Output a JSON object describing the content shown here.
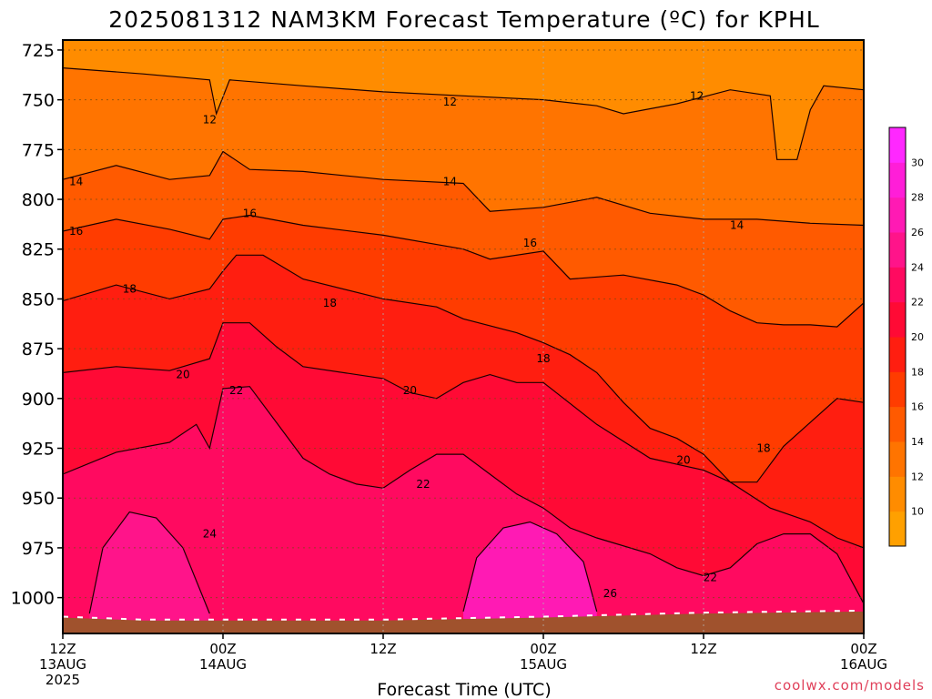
{
  "chart_data": {
    "type": "heatmap",
    "title": "2025081312 NAM3KM Forecast Temperature (ºC) for KPHL",
    "xlabel": "Forecast Time (UTC)",
    "ylabel": "",
    "y_scale": "inverted-pressure",
    "ylim": [
      1018,
      720
    ],
    "xlim_hours": [
      0,
      60
    ],
    "y_ticks": [
      "725",
      "750",
      "775",
      "800",
      "825",
      "850",
      "875",
      "900",
      "925",
      "950",
      "975",
      "1000"
    ],
    "x_ticks": [
      {
        "hour": 0,
        "label": "12Z",
        "date": "13AUG",
        "year": "2025"
      },
      {
        "hour": 12,
        "label": "00Z",
        "date": "14AUG",
        "year": ""
      },
      {
        "hour": 24,
        "label": "12Z",
        "date": "",
        "year": ""
      },
      {
        "hour": 36,
        "label": "00Z",
        "date": "15AUG",
        "year": ""
      },
      {
        "hour": 48,
        "label": "12Z",
        "date": "",
        "year": ""
      },
      {
        "hour": 60,
        "label": "00Z",
        "date": "16AUG",
        "year": ""
      }
    ],
    "grid": true,
    "color_scale": {
      "min": 8,
      "max": 32,
      "step": 2,
      "ticks": [
        "10",
        "12",
        "14",
        "16",
        "18",
        "20",
        "22",
        "24",
        "26",
        "28",
        "30"
      ],
      "colors": [
        "#ffa000",
        "#ff8c00",
        "#ff7400",
        "#ff5a00",
        "#ff3c00",
        "#ff1e10",
        "#ff0a35",
        "#ff0a60",
        "#ff148a",
        "#ff1ab4",
        "#ff1ed8",
        "#ff28ff"
      ]
    },
    "surface_pressure_hpa": [
      {
        "hour": 0,
        "p": 1010
      },
      {
        "hour": 6,
        "p": 1011.5
      },
      {
        "hour": 12,
        "p": 1011.5
      },
      {
        "hour": 24,
        "p": 1011.5
      },
      {
        "hour": 36,
        "p": 1010
      },
      {
        "hour": 48,
        "p": 1008
      },
      {
        "hour": 60,
        "p": 1007
      }
    ],
    "contours": [
      {
        "level": 12,
        "points": [
          [
            0,
            734
          ],
          [
            6,
            737
          ],
          [
            11,
            740
          ],
          [
            11.5,
            757
          ],
          [
            12.5,
            740
          ],
          [
            18,
            743
          ],
          [
            24,
            746
          ],
          [
            30,
            748
          ],
          [
            36,
            750
          ],
          [
            40,
            753
          ],
          [
            42,
            757
          ],
          [
            46,
            752
          ],
          [
            50,
            745
          ],
          [
            53,
            748
          ],
          [
            53.5,
            780
          ],
          [
            55,
            780
          ],
          [
            56,
            755
          ],
          [
            57,
            743
          ],
          [
            60,
            745
          ]
        ]
      },
      {
        "level": 14,
        "points": [
          [
            0,
            790
          ],
          [
            4,
            783
          ],
          [
            8,
            790
          ],
          [
            11,
            788
          ],
          [
            12,
            776
          ],
          [
            14,
            785
          ],
          [
            18,
            786
          ],
          [
            24,
            790
          ],
          [
            30,
            792
          ],
          [
            32,
            806
          ],
          [
            36,
            804
          ],
          [
            40,
            799
          ],
          [
            44,
            807
          ],
          [
            48,
            810
          ],
          [
            52,
            810
          ],
          [
            56,
            812
          ],
          [
            60,
            813
          ]
        ]
      },
      {
        "level": 16,
        "points": [
          [
            0,
            816
          ],
          [
            4,
            810
          ],
          [
            8,
            815
          ],
          [
            11,
            820
          ],
          [
            12,
            810
          ],
          [
            14,
            808
          ],
          [
            18,
            813
          ],
          [
            24,
            818
          ],
          [
            30,
            825
          ],
          [
            32,
            830
          ],
          [
            36,
            826
          ],
          [
            38,
            840
          ],
          [
            42,
            838
          ],
          [
            46,
            843
          ],
          [
            48,
            848
          ],
          [
            50,
            856
          ],
          [
            52,
            862
          ],
          [
            54,
            863
          ],
          [
            56,
            863
          ],
          [
            58,
            864
          ],
          [
            60,
            852
          ]
        ]
      },
      {
        "level": 18,
        "points": [
          [
            0,
            851
          ],
          [
            4,
            843
          ],
          [
            8,
            850
          ],
          [
            11,
            845
          ],
          [
            12,
            836
          ],
          [
            13,
            828
          ],
          [
            15,
            828
          ],
          [
            18,
            840
          ],
          [
            24,
            850
          ],
          [
            28,
            854
          ],
          [
            30,
            860
          ],
          [
            34,
            867
          ],
          [
            36,
            872
          ],
          [
            38,
            878
          ],
          [
            40,
            887
          ],
          [
            42,
            902
          ],
          [
            44,
            915
          ],
          [
            46,
            920
          ],
          [
            48,
            928
          ],
          [
            50,
            942
          ],
          [
            52,
            942
          ],
          [
            54,
            924
          ],
          [
            56,
            912
          ],
          [
            58,
            900
          ],
          [
            60,
            902
          ]
        ]
      },
      {
        "level": 20,
        "points": [
          [
            0,
            887
          ],
          [
            4,
            884
          ],
          [
            8,
            886
          ],
          [
            11,
            880
          ],
          [
            12,
            862
          ],
          [
            14,
            862
          ],
          [
            16,
            874
          ],
          [
            18,
            884
          ],
          [
            24,
            890
          ],
          [
            26,
            897
          ],
          [
            28,
            900
          ],
          [
            30,
            892
          ],
          [
            32,
            888
          ],
          [
            34,
            892
          ],
          [
            36,
            892
          ],
          [
            40,
            913
          ],
          [
            44,
            930
          ],
          [
            48,
            936
          ],
          [
            50,
            942
          ],
          [
            53,
            955
          ],
          [
            56,
            962
          ],
          [
            58,
            970
          ],
          [
            60,
            975
          ]
        ]
      },
      {
        "level": 22,
        "points": [
          [
            0,
            938
          ],
          [
            4,
            927
          ],
          [
            8,
            922
          ],
          [
            10,
            913
          ],
          [
            11,
            925
          ],
          [
            12,
            895
          ],
          [
            14,
            894
          ],
          [
            16,
            912
          ],
          [
            18,
            930
          ],
          [
            20,
            938
          ],
          [
            22,
            943
          ],
          [
            24,
            945
          ],
          [
            26,
            936
          ],
          [
            28,
            928
          ],
          [
            30,
            928
          ],
          [
            32,
            938
          ],
          [
            34,
            948
          ],
          [
            36,
            955
          ],
          [
            38,
            965
          ],
          [
            40,
            970
          ],
          [
            44,
            978
          ],
          [
            46,
            985
          ],
          [
            48,
            989
          ],
          [
            50,
            985
          ],
          [
            52,
            973
          ],
          [
            54,
            968
          ],
          [
            56,
            968
          ],
          [
            58,
            978
          ],
          [
            60,
            1003
          ]
        ]
      },
      {
        "level": 24,
        "points": [
          [
            2,
            1008
          ],
          [
            3,
            975
          ],
          [
            5,
            957
          ],
          [
            7,
            960
          ],
          [
            9,
            975
          ],
          [
            11,
            1008
          ]
        ]
      },
      {
        "level": 26,
        "points": [
          [
            30,
            1007
          ],
          [
            31,
            980
          ],
          [
            33,
            965
          ],
          [
            35,
            962
          ],
          [
            37,
            968
          ],
          [
            39,
            982
          ],
          [
            40,
            1007
          ]
        ]
      }
    ],
    "contour_labels": [
      {
        "level": "12",
        "hour": 11,
        "p": 760
      },
      {
        "level": "12",
        "hour": 29,
        "p": 751
      },
      {
        "level": "12",
        "hour": 47.5,
        "p": 748
      },
      {
        "level": "14",
        "hour": 1,
        "p": 791
      },
      {
        "level": "14",
        "hour": 29,
        "p": 791
      },
      {
        "level": "14",
        "hour": 50.5,
        "p": 813
      },
      {
        "level": "16",
        "hour": 1,
        "p": 816
      },
      {
        "level": "16",
        "hour": 14,
        "p": 807
      },
      {
        "level": "16",
        "hour": 35,
        "p": 822
      },
      {
        "level": "18",
        "hour": 5,
        "p": 845
      },
      {
        "level": "18",
        "hour": 20,
        "p": 852
      },
      {
        "level": "18",
        "hour": 36,
        "p": 880
      },
      {
        "level": "20",
        "hour": 9,
        "p": 888
      },
      {
        "level": "20",
        "hour": 26,
        "p": 896
      },
      {
        "level": "20",
        "hour": 46.5,
        "p": 931
      },
      {
        "level": "18",
        "hour": 52.5,
        "p": 925
      },
      {
        "level": "22",
        "hour": 13,
        "p": 896
      },
      {
        "level": "22",
        "hour": 27,
        "p": 943
      },
      {
        "level": "22",
        "hour": 48.5,
        "p": 990
      },
      {
        "level": "24",
        "hour": 11,
        "p": 968
      },
      {
        "level": "26",
        "hour": 41,
        "p": 998
      }
    ]
  },
  "credit": "coolwx.com/models"
}
